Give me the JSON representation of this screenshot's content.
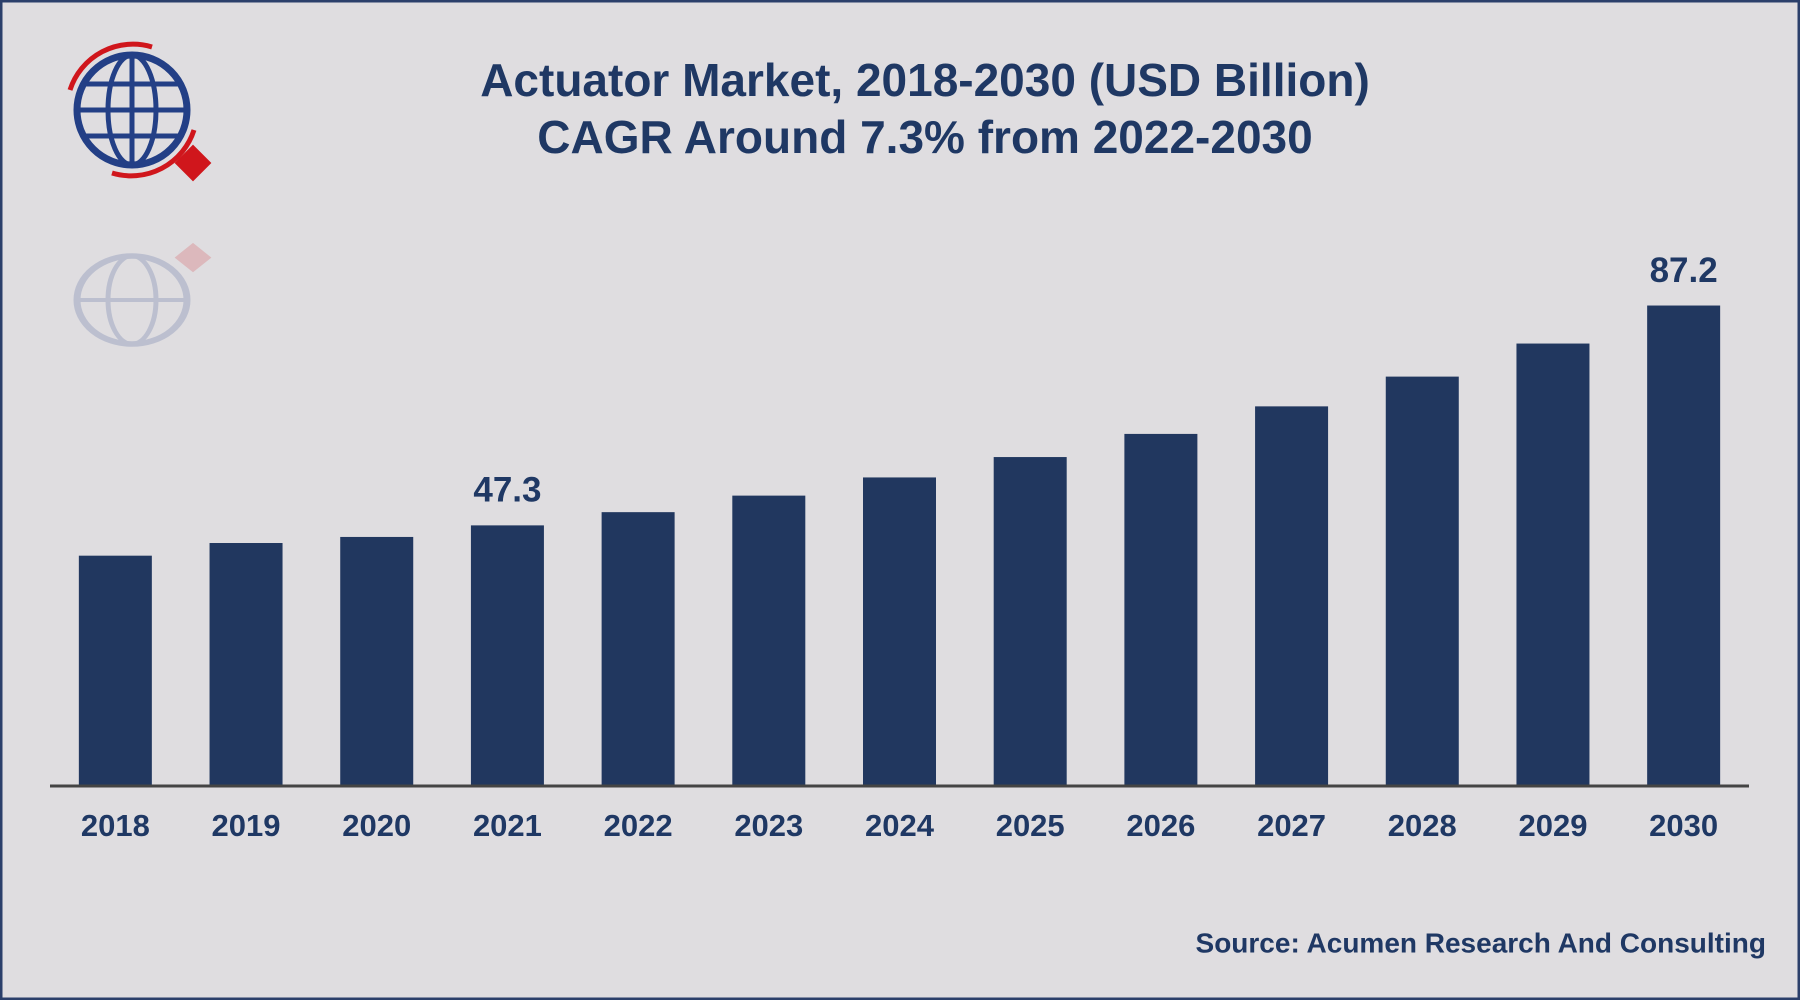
{
  "chart_data": {
    "type": "bar",
    "title": "Actuator Market, 2018-2030 (USD Billion)",
    "subtitle": "CAGR Around 7.3% from 2022-2030",
    "source": "Source: Acumen Research And Consulting",
    "categories": [
      "2018",
      "2019",
      "2020",
      "2021",
      "2022",
      "2023",
      "2024",
      "2025",
      "2026",
      "2027",
      "2028",
      "2029",
      "2030"
    ],
    "values": [
      41.8,
      44.1,
      45.2,
      47.3,
      49.7,
      52.7,
      56.0,
      59.7,
      63.9,
      68.9,
      74.3,
      80.3,
      87.2
    ],
    "value_labels": [
      null,
      null,
      null,
      "47.3",
      null,
      null,
      null,
      null,
      null,
      null,
      null,
      null,
      "87.2"
    ],
    "color": "#21375f",
    "ylim": [
      0,
      100
    ]
  }
}
